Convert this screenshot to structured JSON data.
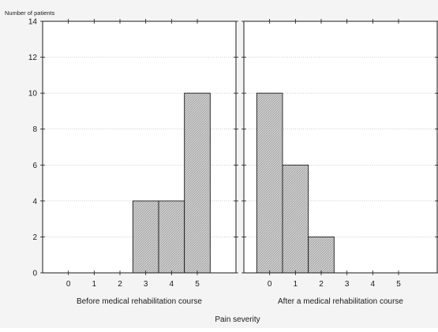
{
  "chart_data": {
    "type": "bar",
    "ylabel": "Number of patients",
    "xlabel": "Pain severity",
    "ylim": [
      0,
      14
    ],
    "yticks": [
      0,
      2,
      4,
      6,
      8,
      10,
      12,
      14
    ],
    "categories": [
      "0",
      "1",
      "2",
      "3",
      "4",
      "5"
    ],
    "grid": true,
    "panels": [
      {
        "label": "Before medical rehabilitation course",
        "values": [
          0,
          0,
          0,
          4,
          4,
          10
        ]
      },
      {
        "label": "After a medical rehabilitation course",
        "values": [
          10,
          6,
          2,
          0,
          0,
          0
        ]
      }
    ],
    "colors": {
      "bar_fill": "#c8c8c8",
      "bar_stroke": "#1a1a1a",
      "grid": "#b0b0b0",
      "panel_bg": "#ffffff"
    }
  }
}
